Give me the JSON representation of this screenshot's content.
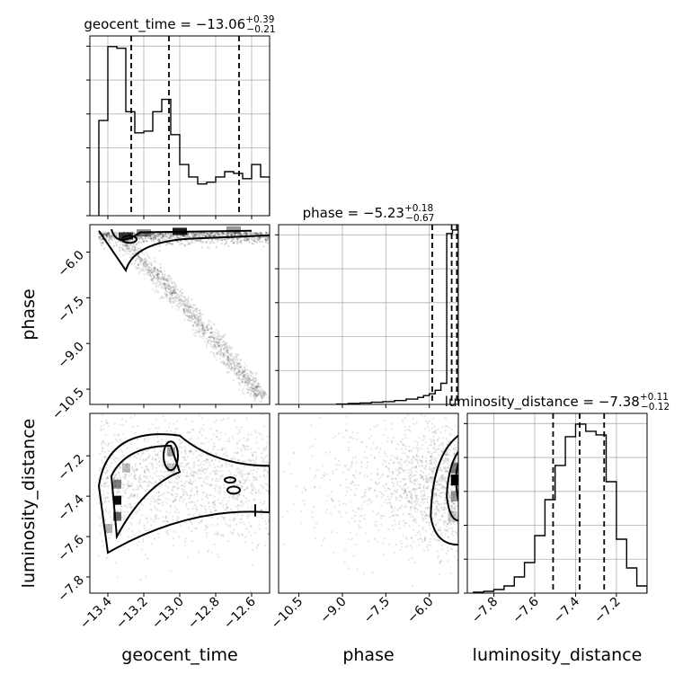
{
  "chart_data": {
    "type": "corner",
    "parameters": [
      {
        "name": "geocent_time",
        "median": -13.06,
        "plus": "+0.39",
        "minus": "−0.21",
        "title_prefix": "geocent_time = −13.06",
        "range": [
          -13.5,
          -12.5
        ],
        "ticks": [
          -13.4,
          -13.2,
          -13.0,
          -12.8,
          -12.6
        ],
        "tick_labels": [
          "−13.4",
          "−13.2",
          "−13.0",
          "−12.8",
          "−12.6"
        ],
        "quantiles": [
          -13.27,
          -13.06,
          -12.67
        ],
        "hist_edges": [
          -13.45,
          -13.4,
          -13.35,
          -13.3,
          -13.25,
          -13.2,
          -13.15,
          -13.1,
          -13.05,
          -13.0,
          -12.95,
          -12.9,
          -12.85,
          -12.8,
          -12.75,
          -12.7,
          -12.65,
          -12.6,
          -12.55,
          -12.5
        ],
        "hist_values": [
          0.54,
          0.96,
          0.95,
          0.59,
          0.47,
          0.48,
          0.59,
          0.66,
          0.46,
          0.29,
          0.22,
          0.18,
          0.19,
          0.22,
          0.25,
          0.24,
          0.21,
          0.29,
          0.22
        ],
        "hist_max": 1.0
      },
      {
        "name": "phase",
        "median": -5.23,
        "plus": "+0.18",
        "minus": "−0.67",
        "title_prefix": "phase = −5.23",
        "range": [
          -11.2,
          -5.0
        ],
        "ticks": [
          -10.5,
          -9.0,
          -7.5,
          -6.0
        ],
        "tick_labels": [
          "−10.5",
          "−9.0",
          "−7.5",
          "−6.0"
        ],
        "quantiles": [
          -5.9,
          -5.23,
          -5.05
        ],
        "hist_edges": [
          -9.2,
          -8.8,
          -8.4,
          -8.0,
          -7.6,
          -7.2,
          -6.8,
          -6.4,
          -6.2,
          -6.0,
          -5.8,
          -5.6,
          -5.4,
          -5.2,
          -5.0
        ],
        "hist_values": [
          0.002,
          0.005,
          0.008,
          0.012,
          0.016,
          0.022,
          0.03,
          0.04,
          0.05,
          0.06,
          0.08,
          0.12,
          0.97,
          0.99
        ],
        "hist_max": 1.0
      },
      {
        "name": "luminosity_distance",
        "median": -7.38,
        "plus": "+0.11",
        "minus": "−0.12",
        "title_prefix": "luminosity_distance = −7.38",
        "range": [
          -7.93,
          -7.05
        ],
        "ticks": [
          -7.8,
          -7.6,
          -7.4,
          -7.2
        ],
        "tick_labels": [
          "−7.8",
          "−7.6",
          "−7.4",
          "−7.2"
        ],
        "quantiles": [
          -7.51,
          -7.38,
          -7.26
        ],
        "hist_edges": [
          -7.9,
          -7.85,
          -7.8,
          -7.75,
          -7.7,
          -7.65,
          -7.6,
          -7.55,
          -7.5,
          -7.45,
          -7.4,
          -7.35,
          -7.3,
          -7.25,
          -7.2,
          -7.15,
          -7.1,
          -7.05
        ],
        "hist_values": [
          0.005,
          0.01,
          0.02,
          0.04,
          0.09,
          0.17,
          0.32,
          0.52,
          0.71,
          0.87,
          0.94,
          0.9,
          0.88,
          0.62,
          0.3,
          0.14,
          0.04
        ],
        "hist_max": 0.98
      }
    ],
    "pairs": [
      {
        "x": "geocent_time",
        "y": "phase",
        "yticks": [
          -10.5,
          -9.0,
          -7.5,
          -6.0
        ],
        "ytick_labels": [
          "−10.5",
          "−9.0",
          "−7.5",
          "−6.0"
        ],
        "ylim": [
          -11.0,
          -5.1
        ]
      },
      {
        "x": "geocent_time",
        "y": "luminosity_distance",
        "yticks": [
          -7.8,
          -7.6,
          -7.4,
          -7.2
        ],
        "ytick_labels": [
          "−7.8",
          "−7.6",
          "−7.4",
          "−7.2"
        ],
        "ylim": [
          -7.88,
          -6.99
        ]
      },
      {
        "x": "phase",
        "y": "luminosity_distance",
        "ylim": [
          -7.88,
          -6.99
        ]
      }
    ],
    "grid": true
  }
}
